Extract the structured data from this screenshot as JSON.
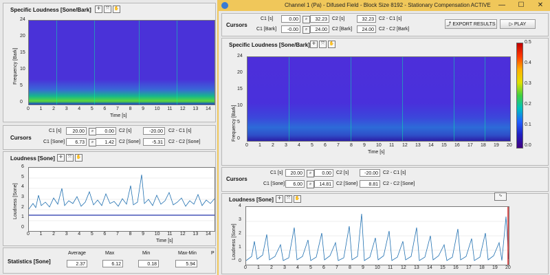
{
  "window": {
    "title": "Channel 1 (Pa)  -  Difused Field  -  Block Size 8192  -  Stationary Compensation ACTIVE",
    "minimize": "—",
    "maximize": "☐",
    "close": "✕"
  },
  "icons": {
    "crosshair": "crosshair-icon",
    "zoom": "zoom-icon",
    "pan": "pan-icon"
  },
  "left": {
    "specific": {
      "title": "Specific Loudness [Sone/Bark]",
      "ylabel": "Frequency [Bark]",
      "xlabel": "Time [s]",
      "yticks": [
        "24",
        "20",
        "15",
        "10",
        "5",
        "0"
      ],
      "xticks": [
        "0",
        "1",
        "2",
        "3",
        "4",
        "5",
        "6",
        "7",
        "8",
        "9",
        "10",
        "11",
        "12",
        "13",
        "14"
      ]
    },
    "cursors": {
      "title": "Cursors",
      "r1_label": "C1 [s]",
      "r1_c1": "20.00",
      "r1_c2": "0.00",
      "r1_c2label": "C2 [s]",
      "r1_diff": "-20.00",
      "r1_difflabel": "C2 - C1 [s]",
      "r2_label": "C1 [Sone]",
      "r2_c1": "6.73",
      "r2_c2": "1.42",
      "r2_c2label": "C2 [Sone]",
      "r2_diff": "-5.31",
      "r2_difflabel": "C2 - C2 [Sone]"
    },
    "loudness": {
      "title": "Loudness [Sone]",
      "ylabel": "Loudness [Sone]",
      "xlabel": "Time [s]",
      "yticks": [
        "6",
        "5",
        "4",
        "3",
        "2",
        "1",
        "0"
      ],
      "xticks": [
        "0",
        "1",
        "2",
        "3",
        "4",
        "5",
        "6",
        "7",
        "8",
        "9",
        "10",
        "11",
        "12",
        "13",
        "14"
      ]
    },
    "stats": {
      "title": "Statistics [Sone]",
      "h_avg": "Average",
      "h_max": "Max",
      "h_min": "Min",
      "h_range": "Max-Min",
      "h_p": "P",
      "avg": "2.37",
      "max": "6.12",
      "min": "0.18",
      "range": "5.94"
    }
  },
  "right": {
    "cursors": {
      "title": "Cursors",
      "r1_label": "C1 [s]",
      "r1_c1": "0.00",
      "r1_c2": "32.23",
      "r1_c2label": "C2 [s]",
      "r1_diff": "32.23",
      "r1_difflabel": "C2 - C1 [s]",
      "r2_label": "C1 [Bark]",
      "r2_c1": "-0.00",
      "r2_c2": "24.00",
      "r2_c2label": "C2 [Bark]",
      "r2_diff": "24.00",
      "r2_difflabel": "C2 - C2 [Bark]"
    },
    "export_button": "EXPORT RESULTS",
    "play_button": "PLAY",
    "specific": {
      "title": "Specific Loudness [Sone/Bark]",
      "ylabel": "Frequency [Bark]",
      "xlabel": "Time [s]",
      "yticks": [
        "24",
        "20",
        "15",
        "10",
        "5",
        "0"
      ],
      "xticks": [
        "0",
        "1",
        "2",
        "3",
        "4",
        "5",
        "6",
        "7",
        "8",
        "9",
        "10",
        "11",
        "12",
        "13",
        "14",
        "15",
        "16",
        "17",
        "18",
        "19",
        "20"
      ],
      "scale": [
        "0.5",
        "0.4",
        "0.3",
        "0.2",
        "0.1",
        "0.0"
      ]
    },
    "cursors2": {
      "title": "Cursors",
      "r1_label": "C1 [s]",
      "r1_c1": "20.00",
      "r1_c2": "0.00",
      "r1_c2label": "C2 [s]",
      "r1_diff": "-20.00",
      "r1_difflabel": "C2 - C1 [s]",
      "r2_label": "C1 [Sone]",
      "r2_c1": "6.00",
      "r2_c2": "14.81",
      "r2_c2label": "C2 [Sone]",
      "r2_diff": "8.81",
      "r2_difflabel": "C2 - C2 [Sone]"
    },
    "loudness": {
      "title": "Loudness [Sone]",
      "ylabel": "Loudness [Sone]",
      "xlabel": "Time [s]",
      "yticks": [
        "4",
        "3",
        "2",
        "1",
        "0"
      ],
      "xticks": [
        "0",
        "1",
        "2",
        "3",
        "4",
        "5",
        "6",
        "7",
        "8",
        "9",
        "10",
        "11",
        "12",
        "13",
        "14",
        "15",
        "16",
        "17",
        "18",
        "19",
        "20"
      ]
    }
  }
}
